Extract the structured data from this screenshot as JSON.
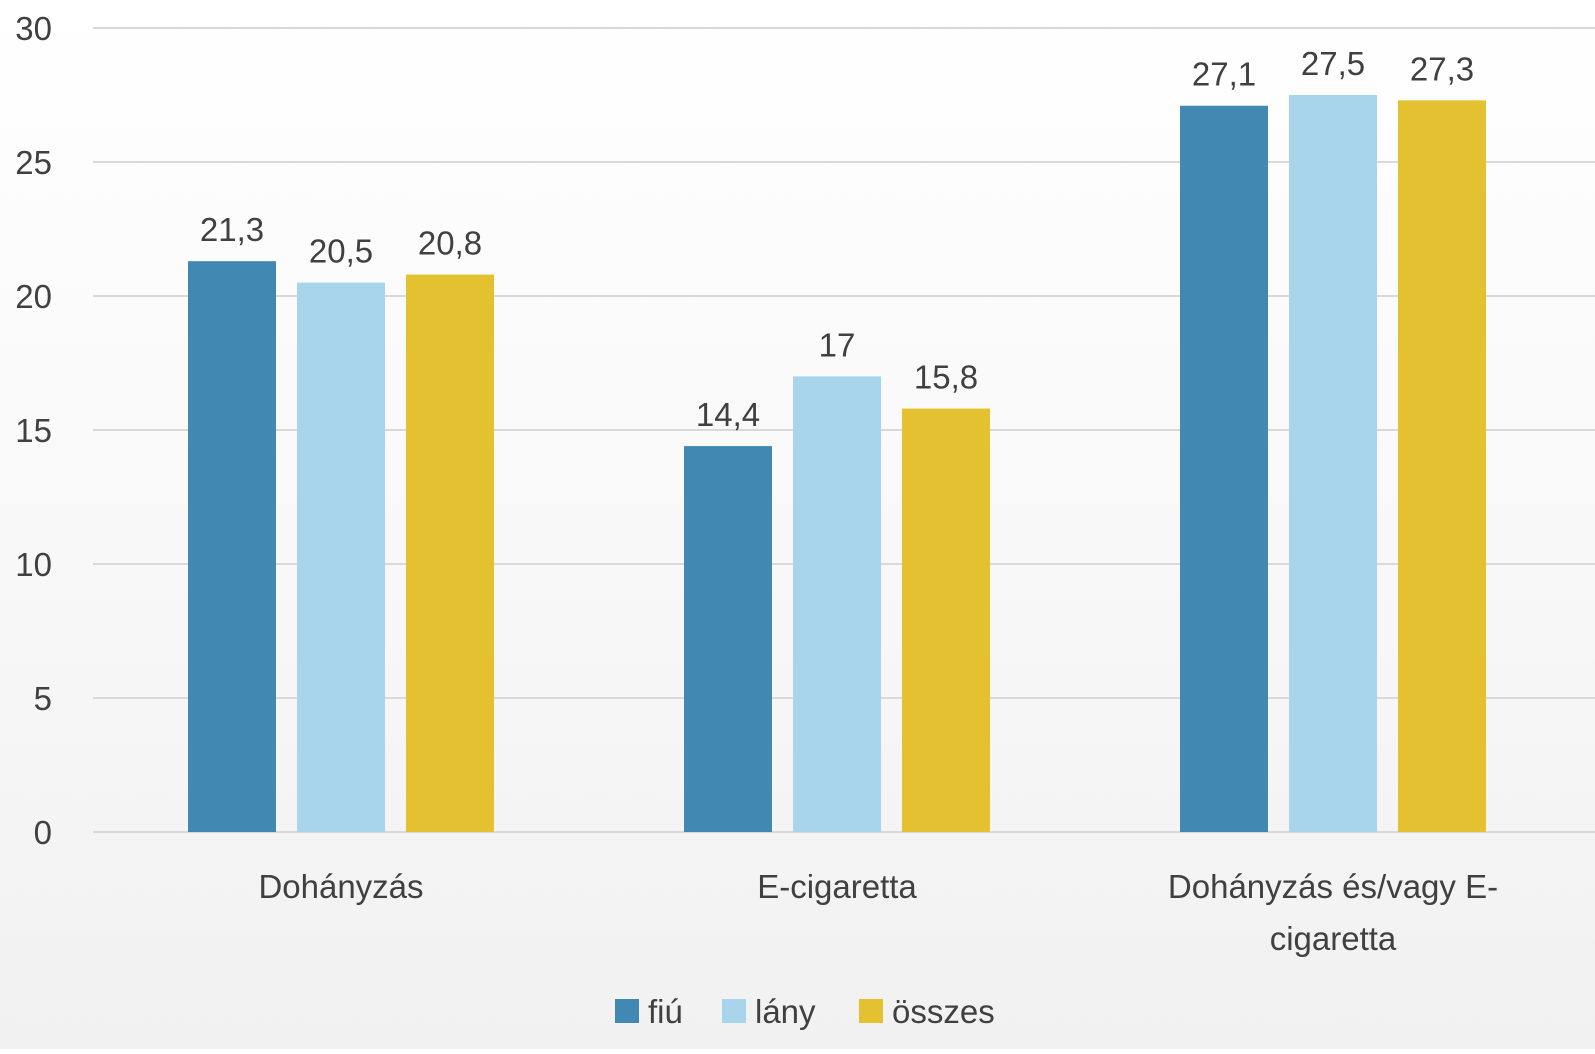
{
  "chart_data": {
    "type": "bar",
    "title": "",
    "xlabel": "",
    "ylabel": "",
    "categories": [
      "Dohányzás",
      "E-cigaretta",
      "Dohányzás és/vagy E-cigaretta"
    ],
    "category_label_lines": [
      [
        "Dohányzás"
      ],
      [
        "E-cigaretta"
      ],
      [
        "Dohányzás és/vagy E-",
        "cigaretta"
      ]
    ],
    "series": [
      {
        "name": "fiú",
        "color": "#4189b3",
        "values": [
          21.3,
          14.4,
          27.1
        ],
        "labels": [
          "21,3",
          "14,4",
          "27,1"
        ]
      },
      {
        "name": "lány",
        "color": "#a8d5ec",
        "values": [
          20.5,
          17,
          27.5
        ],
        "labels": [
          "20,5",
          "17",
          "27,5"
        ]
      },
      {
        "name": "összes",
        "color": "#e3c131",
        "values": [
          20.8,
          15.8,
          27.3
        ],
        "labels": [
          "20,8",
          "15,8",
          "27,3"
        ]
      }
    ],
    "ylim": [
      0,
      30
    ],
    "yticks": [
      0,
      5,
      10,
      15,
      20,
      25,
      30
    ],
    "ytick_labels": [
      "0",
      "5",
      "10",
      "15",
      "20",
      "25",
      "30"
    ],
    "grid": true,
    "legend_position": "bottom-center"
  }
}
